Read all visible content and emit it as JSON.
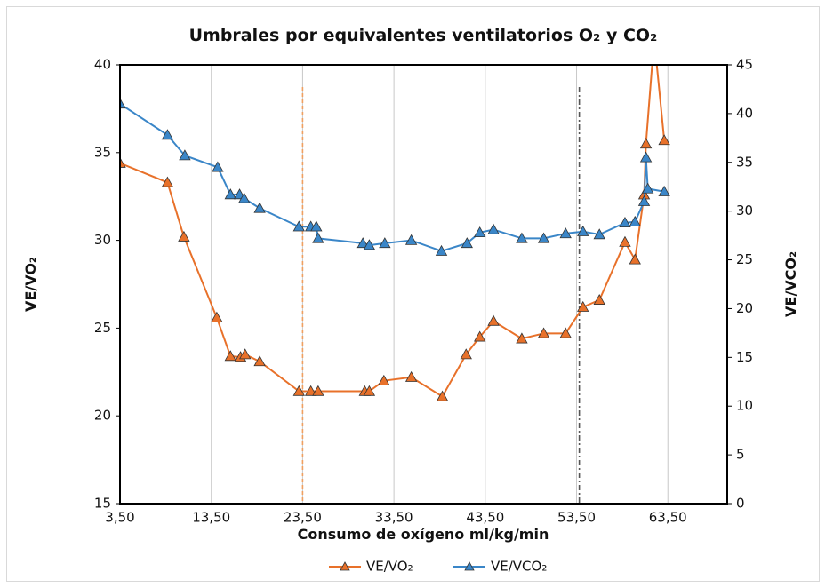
{
  "chart_data": {
    "type": "line",
    "title": "Umbrales por equivalentes ventilatorios O₂ y CO₂",
    "x_label": "Consumo de oxígeno ml/kg/min",
    "y_label": "VE/VO₂",
    "y2_label": "VE/VCO₂",
    "xlim": [
      3.5,
      70
    ],
    "xticks": [
      {
        "value": 3.5,
        "label": "3,50"
      },
      {
        "value": 13.5,
        "label": "13,50"
      },
      {
        "value": 23.5,
        "label": "23,50"
      },
      {
        "value": 33.5,
        "label": "33,50"
      },
      {
        "value": 43.5,
        "label": "43,50"
      },
      {
        "value": 53.5,
        "label": "53,50"
      },
      {
        "value": 63.5,
        "label": "63,50"
      }
    ],
    "ylim": [
      15,
      40
    ],
    "yticks": [
      15,
      20,
      25,
      30,
      35,
      40
    ],
    "y2lim": [
      0,
      45
    ],
    "y2ticks": [
      0,
      5,
      10,
      15,
      20,
      25,
      30,
      35,
      40,
      45
    ],
    "grid": true,
    "legend": "bottom",
    "thresholds": [
      {
        "value": 23.5,
        "color": "#f0a060",
        "style": "dashed"
      },
      {
        "value": 53.8,
        "color": "#555555",
        "style": "dashdot"
      }
    ],
    "series": [
      {
        "name": "VE/VO₂",
        "color": "#e8712a",
        "marker_color": "#e8712a",
        "axis": "y",
        "x": [
          3.5,
          8.7,
          10.5,
          14.1,
          15.6,
          16.7,
          17.2,
          18.8,
          23.1,
          24.4,
          25.2,
          30.3,
          30.8,
          32.4,
          35.4,
          38.8,
          41.4,
          42.9,
          44.4,
          47.5,
          49.9,
          52.3,
          54.2,
          56.0,
          58.8,
          59.9,
          60.9,
          61.1,
          62.0,
          63.1
        ],
        "values": [
          34.4,
          33.3,
          30.2,
          25.6,
          23.4,
          23.35,
          23.5,
          23.1,
          21.4,
          21.4,
          21.4,
          21.4,
          21.4,
          22.0,
          22.2,
          21.1,
          23.5,
          24.5,
          25.4,
          24.4,
          24.7,
          24.7,
          26.2,
          26.6,
          29.9,
          28.9,
          32.6,
          35.5,
          41.5,
          35.7
        ]
      },
      {
        "name": "VE/VCO₂",
        "color": "#3a86c8",
        "marker_color": "#3a86c8",
        "axis": "y2",
        "x": [
          3.5,
          8.7,
          10.6,
          14.2,
          15.6,
          16.6,
          17.1,
          18.8,
          23.1,
          24.4,
          25.0,
          25.2,
          30.1,
          30.8,
          32.5,
          35.4,
          38.7,
          41.5,
          42.9,
          44.4,
          47.5,
          49.9,
          52.3,
          54.2,
          56.0,
          58.8,
          59.9,
          60.9,
          61.1,
          61.3,
          63.1
        ],
        "values": [
          41.0,
          37.8,
          35.7,
          34.5,
          31.7,
          31.7,
          31.3,
          30.3,
          28.4,
          28.4,
          28.4,
          27.2,
          26.7,
          26.5,
          26.7,
          27.0,
          25.9,
          26.7,
          27.8,
          28.1,
          27.2,
          27.2,
          27.7,
          27.9,
          27.6,
          28.8,
          28.9,
          31.0,
          35.5,
          32.3,
          32.0
        ]
      }
    ]
  }
}
